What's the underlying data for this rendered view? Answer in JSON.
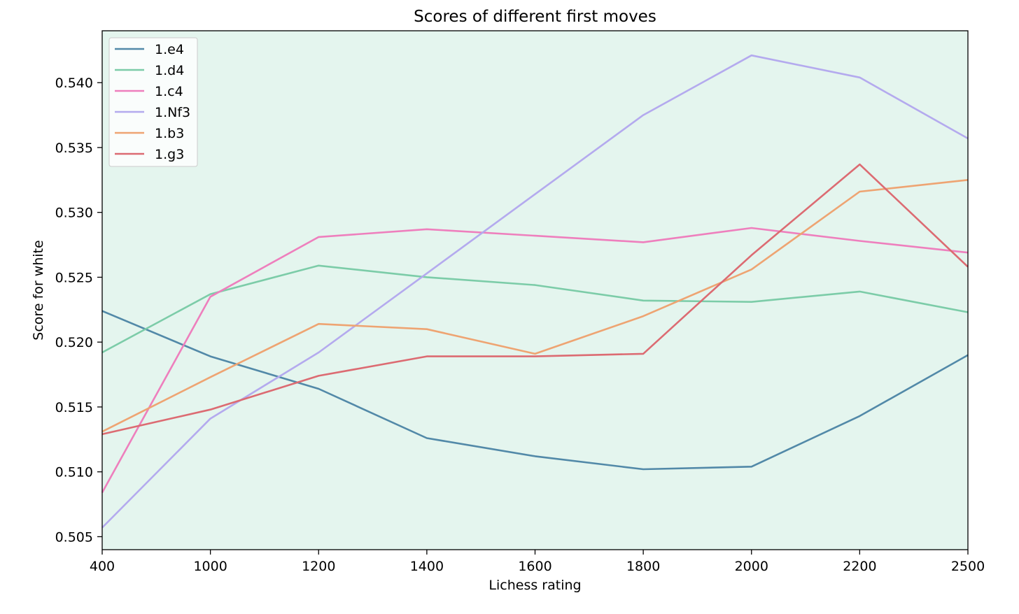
{
  "chart_data": {
    "type": "line",
    "title": "Scores of different first moves",
    "xlabel": "Lichess rating",
    "ylabel": "Score for white",
    "x": [
      "400",
      "1000",
      "1200",
      "1400",
      "1600",
      "1800",
      "2000",
      "2200",
      "2500"
    ],
    "xticks": [
      "400",
      "1000",
      "1200",
      "1400",
      "1600",
      "1800",
      "2000",
      "2200",
      "2500"
    ],
    "ylim": [
      0.504,
      0.544
    ],
    "yticks": [
      "0.505",
      "0.510",
      "0.515",
      "0.520",
      "0.525",
      "0.530",
      "0.535",
      "0.540"
    ],
    "grid": false,
    "legend_position": "top-left",
    "plot_background": "#e4f5ee",
    "series": [
      {
        "name": "1.e4",
        "color": "#5289a8",
        "values": [
          0.5224,
          0.5189,
          0.5164,
          0.5126,
          0.5112,
          0.5102,
          0.5104,
          0.5143,
          0.519
        ]
      },
      {
        "name": "1.d4",
        "color": "#7ccca8",
        "values": [
          0.5192,
          0.5237,
          0.5259,
          0.525,
          0.5244,
          0.5232,
          0.5231,
          0.5239,
          0.5223
        ]
      },
      {
        "name": "1.c4",
        "color": "#ee7fbd",
        "values": [
          0.5084,
          0.5235,
          0.5281,
          0.5287,
          0.5282,
          0.5277,
          0.5288,
          0.5278,
          0.5269
        ]
      },
      {
        "name": "1.Nf3",
        "color": "#b4aaee",
        "values": [
          0.5057,
          0.5141,
          0.5192,
          0.5253,
          0.5314,
          0.5375,
          0.5421,
          0.5404,
          0.5357
        ]
      },
      {
        "name": "1.b3",
        "color": "#eea472",
        "values": [
          0.5131,
          0.5173,
          0.5214,
          0.521,
          0.5191,
          0.522,
          0.5256,
          0.5316,
          0.5325
        ]
      },
      {
        "name": "1.g3",
        "color": "#dc6b72",
        "values": [
          0.5129,
          0.5148,
          0.5174,
          0.5189,
          0.5189,
          0.5191,
          0.5267,
          0.5337,
          0.5258
        ]
      }
    ]
  }
}
